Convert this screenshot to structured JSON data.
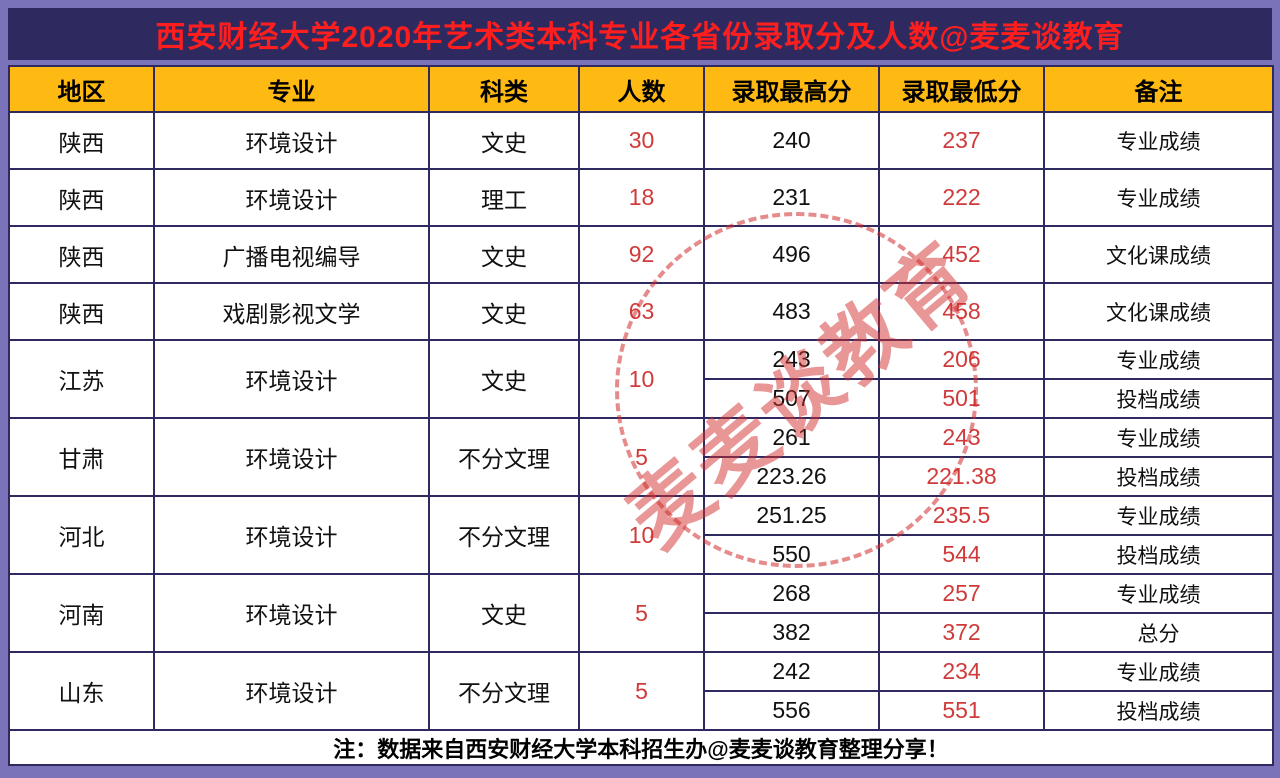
{
  "title": "西安财经大学2020年艺术类本科专业各省份录取分及人数@麦麦谈教育",
  "watermark": "麦麦谈教育",
  "footer_note": "注：数据来自西安财经大学本科招生办@麦麦谈教育整理分享！",
  "colors": {
    "page_background": "#7a73b9",
    "title_bar_bg": "#2e2a60",
    "title_text": "#ff1e1e",
    "header_bg": "#ffb913",
    "border": "#2e2a60",
    "highlight_red": "#d03a3a",
    "cell_bg": "#ffffff"
  },
  "chart_data": {
    "type": "table",
    "title": "西安财经大学2020年艺术类本科专业各省份录取分及人数@麦麦谈教育",
    "columns": [
      "地区",
      "专业",
      "科类",
      "人数",
      "录取最高分",
      "录取最低分",
      "备注"
    ],
    "rows": [
      {
        "region": "陕西",
        "major": "环境设计",
        "category": "文史",
        "count": "30",
        "entries": [
          {
            "max": "240",
            "min": "237",
            "note": "专业成绩"
          }
        ]
      },
      {
        "region": "陕西",
        "major": "环境设计",
        "category": "理工",
        "count": "18",
        "entries": [
          {
            "max": "231",
            "min": "222",
            "note": "专业成绩"
          }
        ]
      },
      {
        "region": "陕西",
        "major": "广播电视编导",
        "category": "文史",
        "count": "92",
        "entries": [
          {
            "max": "496",
            "min": "452",
            "note": "文化课成绩"
          }
        ]
      },
      {
        "region": "陕西",
        "major": "戏剧影视文学",
        "category": "文史",
        "count": "63",
        "entries": [
          {
            "max": "483",
            "min": "458",
            "note": "文化课成绩"
          }
        ]
      },
      {
        "region": "江苏",
        "major": "环境设计",
        "category": "文史",
        "count": "10",
        "entries": [
          {
            "max": "243",
            "min": "206",
            "note": "专业成绩"
          },
          {
            "max": "507",
            "min": "501",
            "note": "投档成绩"
          }
        ]
      },
      {
        "region": "甘肃",
        "major": "环境设计",
        "category": "不分文理",
        "count": "5",
        "entries": [
          {
            "max": "261",
            "min": "243",
            "note": "专业成绩"
          },
          {
            "max": "223.26",
            "min": "221.38",
            "note": "投档成绩"
          }
        ]
      },
      {
        "region": "河北",
        "major": "环境设计",
        "category": "不分文理",
        "count": "10",
        "entries": [
          {
            "max": "251.25",
            "min": "235.5",
            "note": "专业成绩"
          },
          {
            "max": "550",
            "min": "544",
            "note": "投档成绩"
          }
        ]
      },
      {
        "region": "河南",
        "major": "环境设计",
        "category": "文史",
        "count": "5",
        "entries": [
          {
            "max": "268",
            "min": "257",
            "note": "专业成绩"
          },
          {
            "max": "382",
            "min": "372",
            "note": "总分"
          }
        ]
      },
      {
        "region": "山东",
        "major": "环境设计",
        "category": "不分文理",
        "count": "5",
        "entries": [
          {
            "max": "242",
            "min": "234",
            "note": "专业成绩"
          },
          {
            "max": "556",
            "min": "551",
            "note": "投档成绩"
          }
        ]
      }
    ]
  }
}
